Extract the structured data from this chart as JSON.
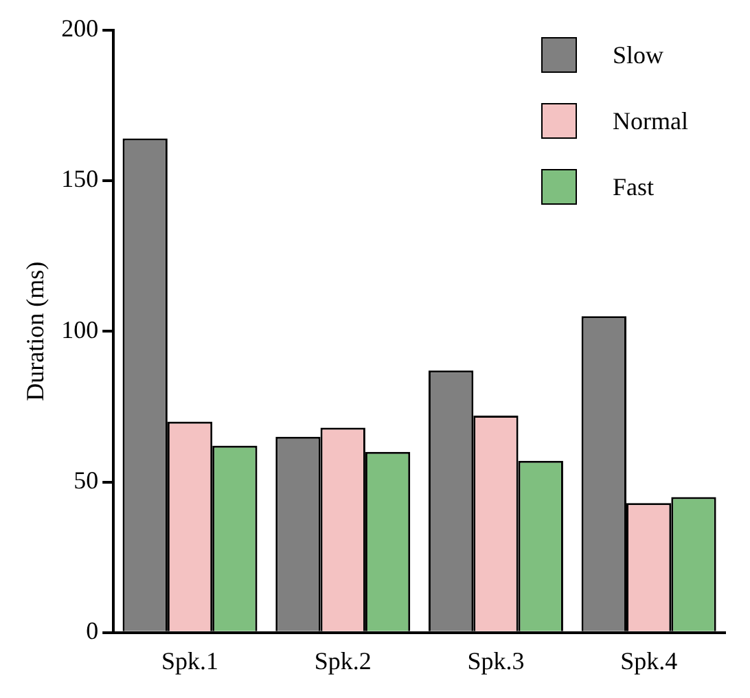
{
  "chart_data": {
    "type": "bar",
    "ylabel": "Duration (ms)",
    "categories": [
      "Spk.1",
      "Spk.2",
      "Spk.3",
      "Spk.4"
    ],
    "series": [
      {
        "name": "Slow",
        "color": "#808080",
        "values": [
          164,
          65,
          87,
          105
        ]
      },
      {
        "name": "Normal",
        "color": "#f4c2c2",
        "values": [
          70,
          68,
          72,
          43
        ]
      },
      {
        "name": "Fast",
        "color": "#7fbf7f",
        "values": [
          62,
          60,
          57,
          45
        ]
      }
    ],
    "ylim": [
      0,
      200
    ],
    "yticks": [
      0,
      50,
      100,
      150,
      200
    ],
    "grid": false,
    "legend": "top right"
  }
}
